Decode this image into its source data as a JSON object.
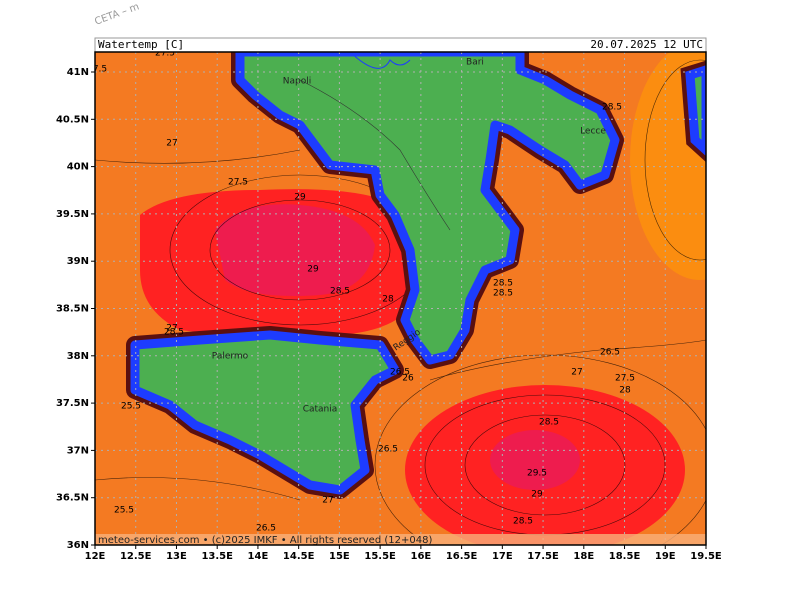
{
  "header": {
    "model": "CETA – m",
    "title": "Watertemp [C]",
    "valid": "20.07.2025 12 UTC"
  },
  "axes": {
    "lat": [
      "41N",
      "40.5N",
      "40N",
      "39.5N",
      "39N",
      "38.5N",
      "38N",
      "37.5N",
      "37N",
      "36.5N",
      "36N"
    ],
    "lon": [
      "12E",
      "12.5E",
      "13E",
      "13.5E",
      "14E",
      "14.5E",
      "15E",
      "15.5E",
      "16E",
      "16.5E",
      "17E",
      "17.5E",
      "18E",
      "18.5E",
      "19E",
      "19.5E"
    ]
  },
  "places": [
    "Napoli",
    "Bari",
    "Lecce",
    "Palermo",
    "Catania",
    "Reggio"
  ],
  "contour_labels": [
    "27.5",
    "7.5",
    "27",
    "27.5",
    "29",
    "29",
    "28.5",
    "28",
    "27",
    "28.5",
    "28.5",
    "28.5",
    "28.5",
    "26.5",
    "27",
    "27.5",
    "28",
    "28.5",
    "29.5",
    "29",
    "28.5",
    "25.5",
    "26.5",
    "26",
    "26.5",
    "27",
    "25.5",
    "26.5"
  ],
  "footer": "meteo-services.com • (c)2025 IMKF • All rights reserved (12+048)"
}
